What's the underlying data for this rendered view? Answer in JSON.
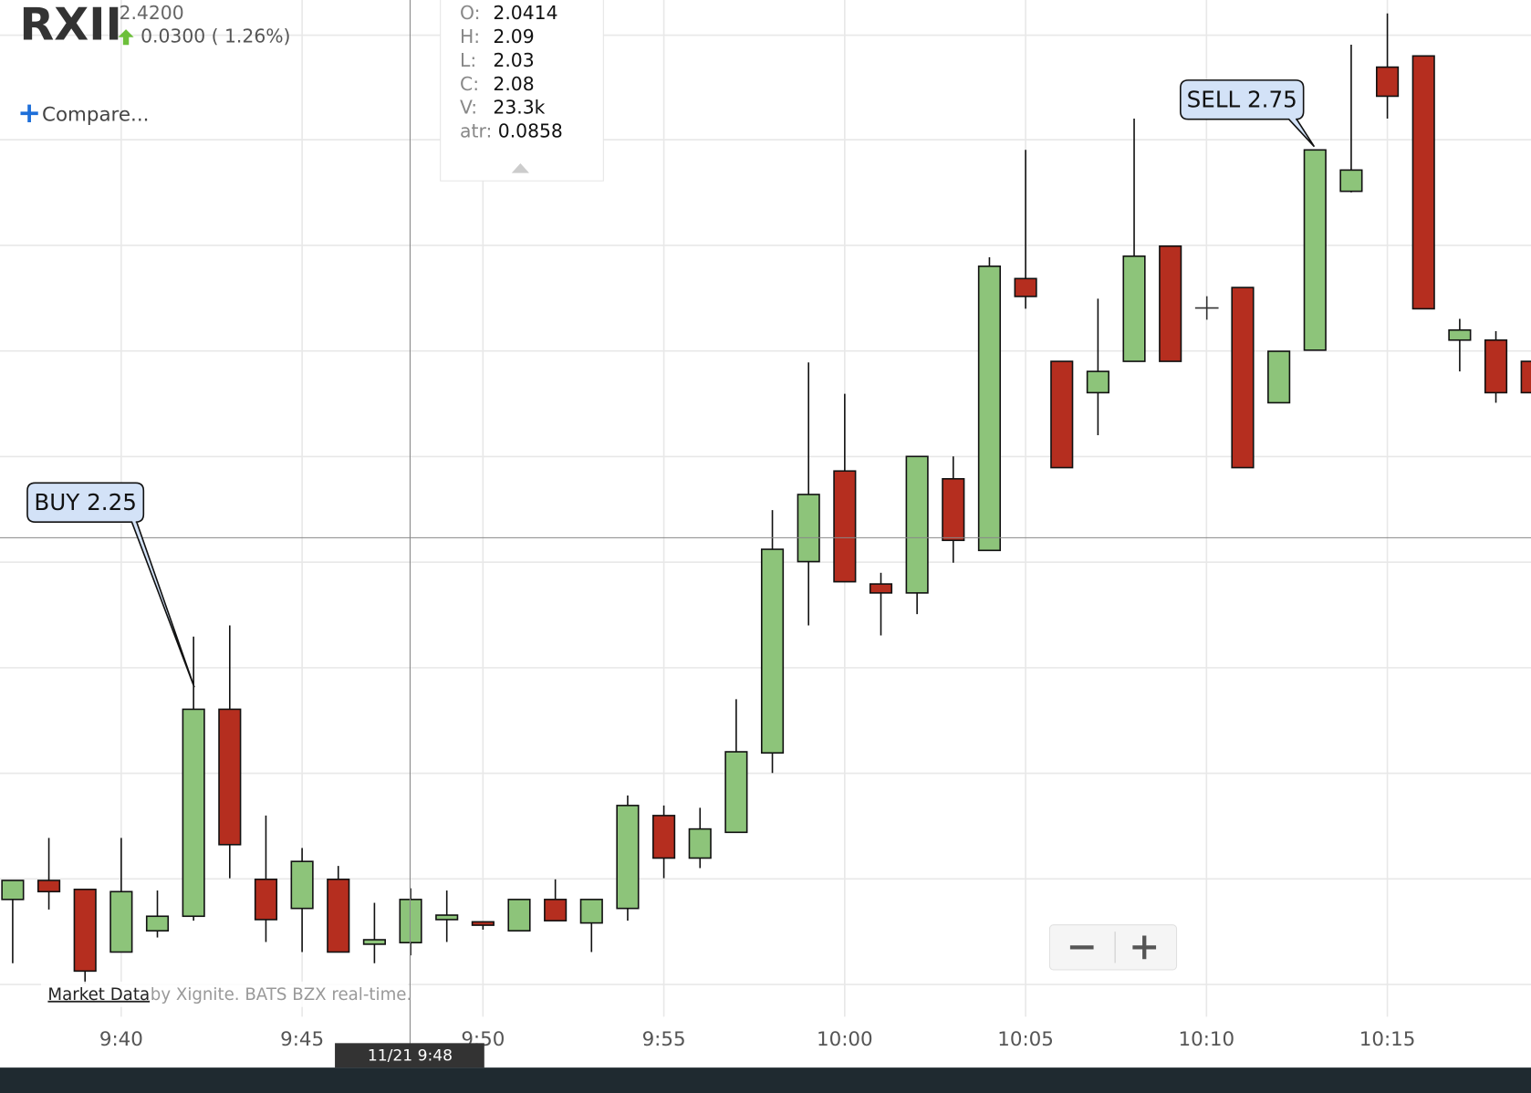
{
  "header": {
    "ticker": "RXII",
    "price": "2.4200",
    "change": "0.0300 ( 1.26%)",
    "compare": "Compare..."
  },
  "tooltip": {
    "items": [
      {
        "label": "O:",
        "value": 2.0414
      },
      {
        "label": "H:",
        "value": 2.09
      },
      {
        "label": "L:",
        "value": 2.03
      },
      {
        "label": "C:",
        "value": 2.08
      },
      {
        "label": "V:",
        "value": "23.3k"
      },
      {
        "label": "atr:",
        "value": 0.0858
      }
    ]
  },
  "footer": {
    "source_link": "Market Data",
    "source_text": "by Xignite. BATS BZX real-time."
  },
  "crosshair_label": "11/21 9:48",
  "chart_data": {
    "type": "candlestick",
    "categories": [
      null,
      null,
      null,
      "9:40",
      null,
      null,
      null,
      null,
      "9:45",
      null,
      null,
      null,
      null,
      "9:50",
      null,
      null,
      null,
      null,
      "9:55",
      null,
      null,
      null,
      null,
      "10:00",
      null,
      null,
      null,
      null,
      "10:05",
      null,
      null,
      null,
      null,
      "10:10",
      null,
      null,
      null,
      null,
      "10:15",
      null,
      null,
      null,
      null
    ],
    "open": [
      2.08,
      2.097,
      2.089,
      2.033,
      2.052,
      2.065,
      2.25,
      2.098,
      2.072,
      2.098,
      2.04,
      2.0414,
      2.062,
      2.06,
      2.052,
      2.08,
      2.059,
      2.072,
      2.155,
      2.117,
      2.14,
      2.211,
      2.382,
      2.463,
      2.362,
      2.354,
      2.456,
      2.392,
      2.635,
      2.561,
      2.533,
      2.561,
      2.664,
      null,
      2.627,
      2.524,
      2.571,
      2.713,
      2.824,
      2.834,
      2.58,
      2.58,
      2.561
    ],
    "high": [
      2.097,
      2.135,
      2.089,
      2.135,
      2.088,
      2.315,
      2.325,
      2.155,
      2.126,
      2.11,
      2.077,
      2.09,
      2.088,
      2.06,
      2.08,
      2.098,
      2.08,
      2.173,
      2.164,
      2.162,
      2.259,
      2.428,
      2.56,
      2.532,
      2.372,
      2.476,
      2.476,
      2.654,
      2.75,
      2.561,
      2.617,
      2.778,
      2.664,
      null,
      2.627,
      2.57,
      2.75,
      2.844,
      2.872,
      2.834,
      2.599,
      2.588,
      2.561
    ],
    "low": [
      2.023,
      2.071,
      2.005,
      2.033,
      2.046,
      2.061,
      2.099,
      2.042,
      2.033,
      2.033,
      2.023,
      2.03,
      2.042,
      2.053,
      2.052,
      2.061,
      2.033,
      2.061,
      2.099,
      2.108,
      2.14,
      2.193,
      2.325,
      2.364,
      2.316,
      2.335,
      2.381,
      2.392,
      2.608,
      2.466,
      2.495,
      2.561,
      2.561,
      null,
      2.466,
      2.524,
      2.571,
      2.712,
      2.778,
      2.608,
      2.552,
      2.524,
      2.533
    ],
    "close": [
      2.097,
      2.087,
      2.016,
      2.087,
      2.065,
      2.25,
      2.129,
      2.062,
      2.114,
      2.033,
      2.044,
      2.08,
      2.066,
      2.057,
      2.08,
      2.061,
      2.08,
      2.164,
      2.117,
      2.143,
      2.212,
      2.393,
      2.442,
      2.364,
      2.354,
      2.476,
      2.401,
      2.646,
      2.619,
      2.466,
      2.552,
      2.655,
      2.561,
      null,
      2.466,
      2.57,
      2.75,
      2.732,
      2.798,
      2.608,
      2.589,
      2.533,
      2.533
    ],
    "up_color": "#8dc47a",
    "down_color": "#b52e1f",
    "ylim": [
      1.907,
      2.884
    ],
    "annotations": [
      {
        "text": "BUY 2.25"
      },
      {
        "text": "SELL 2.75"
      }
    ]
  }
}
